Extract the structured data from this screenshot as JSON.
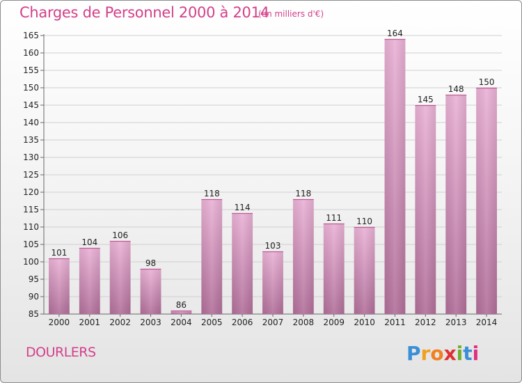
{
  "header": {
    "title": "Charges de Personnel 2000 à 2014",
    "subtitle": "(en milliers d'€)"
  },
  "footer": {
    "commune": "DOURLERS",
    "logo_text": "Proxiti"
  },
  "colors": {
    "title": "#d3408a",
    "bar_light": "#eab2d6",
    "bar_dark": "#b26f9a",
    "grid": "#cccccc"
  },
  "chart_data": {
    "type": "bar",
    "title": "Charges de Personnel 2000 à 2014",
    "subtitle": "(en milliers d'€)",
    "categories": [
      "2000",
      "2001",
      "2002",
      "2003",
      "2004",
      "2005",
      "2006",
      "2007",
      "2008",
      "2009",
      "2010",
      "2011",
      "2012",
      "2013",
      "2014"
    ],
    "values": [
      101,
      104,
      106,
      98,
      86,
      118,
      114,
      103,
      118,
      111,
      110,
      164,
      145,
      148,
      150
    ],
    "ylim": [
      85,
      165
    ],
    "yticks": [
      85,
      90,
      95,
      100,
      105,
      110,
      115,
      120,
      125,
      130,
      135,
      140,
      145,
      150,
      155,
      160,
      165
    ],
    "grid": true,
    "legend": "none"
  }
}
